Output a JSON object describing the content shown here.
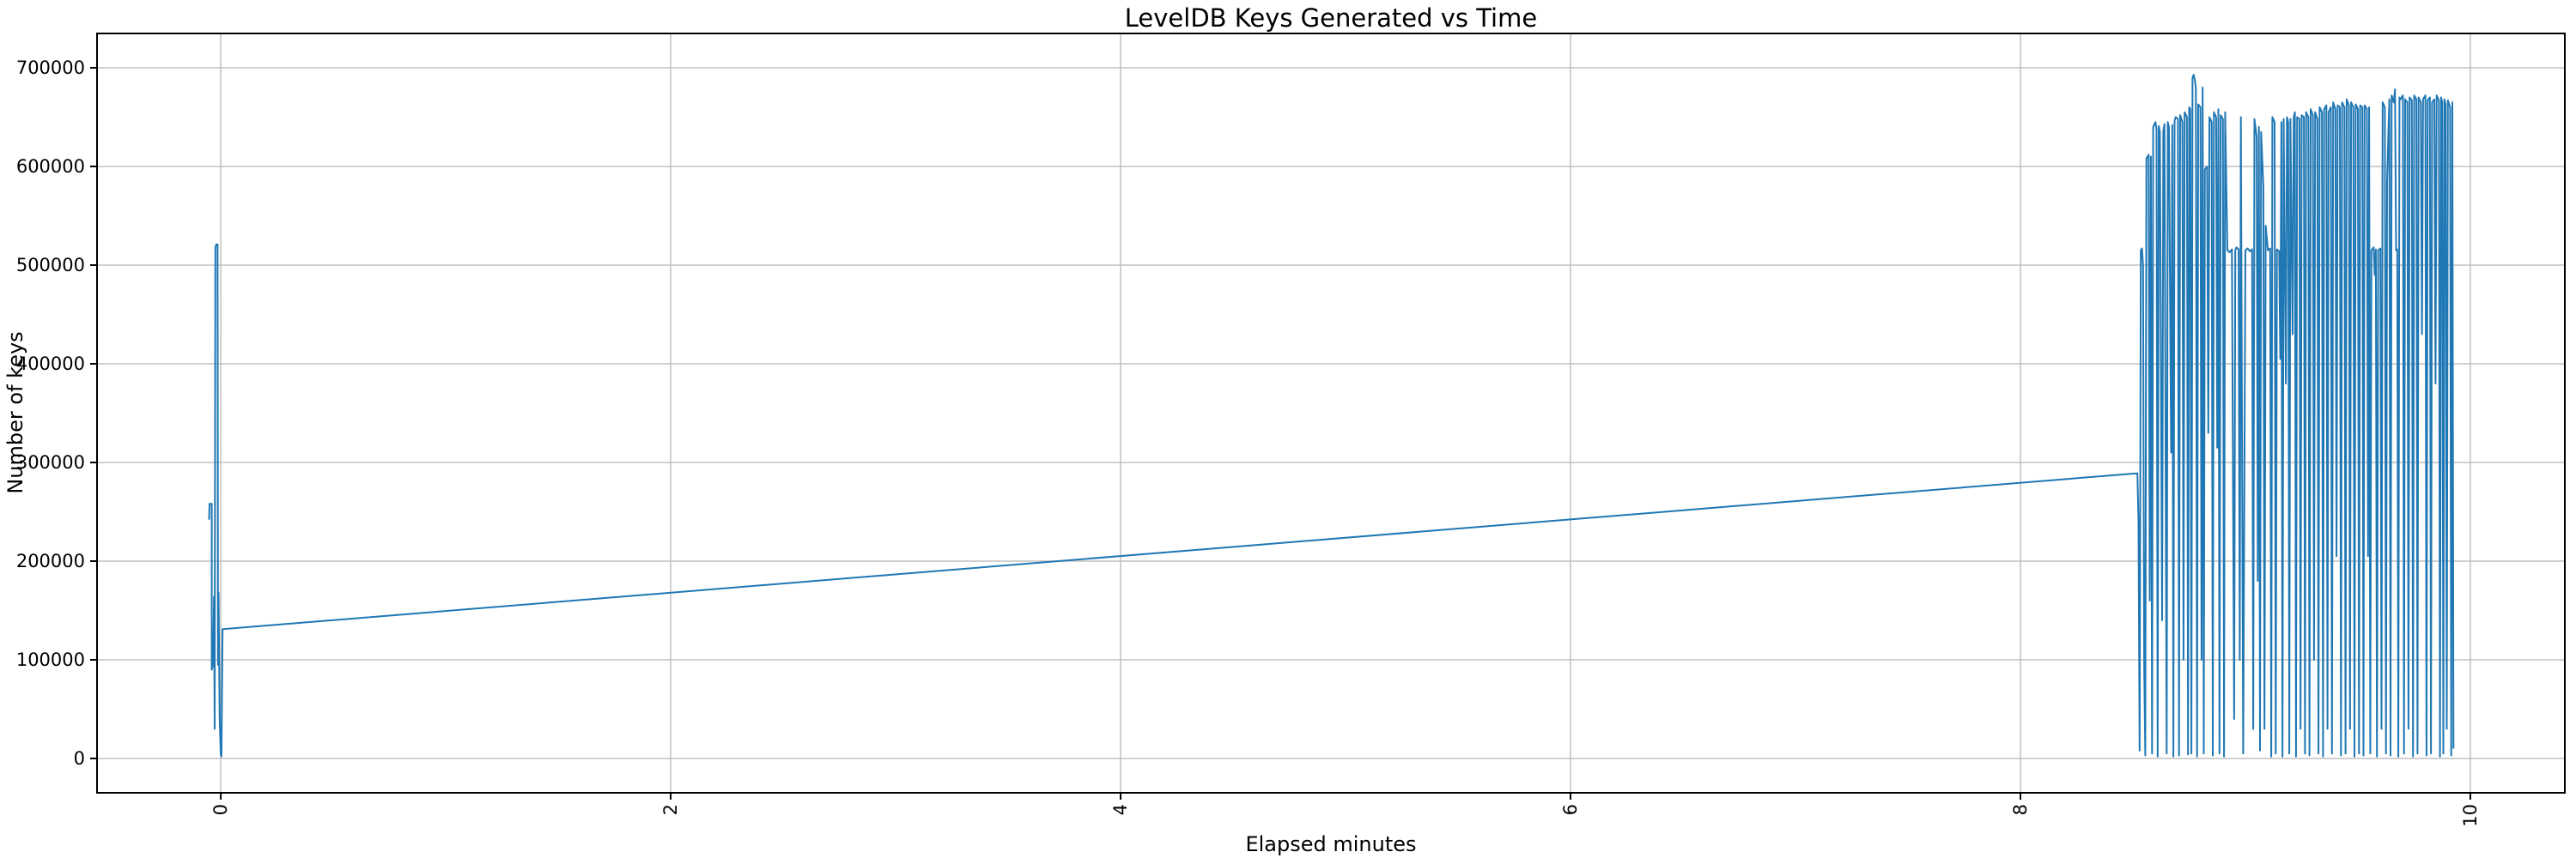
{
  "chart_data": {
    "type": "line",
    "title": "LevelDB Keys Generated vs Time",
    "xlabel": "Elapsed minutes",
    "ylabel": "Number of keys",
    "xlim": [
      -0.55,
      10.42
    ],
    "ylim": [
      -34800,
      734800
    ],
    "xticks": [
      0,
      2,
      4,
      6,
      8,
      10
    ],
    "yticks": [
      0,
      100000,
      200000,
      300000,
      400000,
      500000,
      600000,
      700000
    ],
    "grid": true,
    "legend": "none",
    "line_color": "#1f77b4",
    "grid_color": "#c0c0c0",
    "spine_color": "#000000",
    "background_color": "#ffffff",
    "series": [
      {
        "name": "keys-generated",
        "points": [
          [
            -0.052,
            242000
          ],
          [
            -0.05,
            258000
          ],
          [
            -0.04,
            258000
          ],
          [
            -0.04,
            90000
          ],
          [
            -0.034,
            96000
          ],
          [
            -0.03,
            164000
          ],
          [
            -0.027,
            30000
          ],
          [
            -0.024,
            518000
          ],
          [
            -0.02,
            521000
          ],
          [
            -0.014,
            521000
          ],
          [
            -0.012,
            95000
          ],
          [
            -0.01,
            168000
          ],
          [
            -0.005,
            42000
          ],
          [
            0.0,
            4000
          ],
          [
            0.003,
            2000
          ],
          [
            0.008,
            131000
          ],
          [
            8.52,
            289000
          ],
          [
            8.525,
            240000
          ],
          [
            8.53,
            8000
          ],
          [
            8.535,
            515000
          ],
          [
            8.54,
            517000
          ],
          [
            8.545,
            500000
          ],
          [
            8.55,
            95000
          ],
          [
            8.555,
            3000
          ],
          [
            8.56,
            608000
          ],
          [
            8.57,
            612000
          ],
          [
            8.575,
            160000
          ],
          [
            8.58,
            610000
          ],
          [
            8.585,
            5000
          ],
          [
            8.59,
            640000
          ],
          [
            8.6,
            645000
          ],
          [
            8.605,
            638000
          ],
          [
            8.61,
            2000
          ],
          [
            8.615,
            641000
          ],
          [
            8.62,
            635000
          ],
          [
            8.63,
            140000
          ],
          [
            8.635,
            636000
          ],
          [
            8.64,
            643000
          ],
          [
            8.65,
            5000
          ],
          [
            8.655,
            645000
          ],
          [
            8.66,
            640000
          ],
          [
            8.67,
            310000
          ],
          [
            8.675,
            642000
          ],
          [
            8.68,
            2000
          ],
          [
            8.685,
            646000
          ],
          [
            8.69,
            650000
          ],
          [
            8.7,
            648000
          ],
          [
            8.705,
            3000
          ],
          [
            8.71,
            652000
          ],
          [
            8.72,
            645000
          ],
          [
            8.725,
            100000
          ],
          [
            8.73,
            655000
          ],
          [
            8.74,
            650000
          ],
          [
            8.745,
            4000
          ],
          [
            8.75,
            660000
          ],
          [
            8.755,
            658000
          ],
          [
            8.76,
            5000
          ],
          [
            8.765,
            690000
          ],
          [
            8.77,
            693000
          ],
          [
            8.775,
            688000
          ],
          [
            8.78,
            680000
          ],
          [
            8.785,
            2000
          ],
          [
            8.79,
            663000
          ],
          [
            8.8,
            660000
          ],
          [
            8.805,
            100000
          ],
          [
            8.81,
            680000
          ],
          [
            8.815,
            5000
          ],
          [
            8.82,
            597000
          ],
          [
            8.83,
            600000
          ],
          [
            8.835,
            330000
          ],
          [
            8.84,
            650000
          ],
          [
            8.85,
            645000
          ],
          [
            8.855,
            3000
          ],
          [
            8.86,
            655000
          ],
          [
            8.87,
            650000
          ],
          [
            8.875,
            315000
          ],
          [
            8.88,
            658000
          ],
          [
            8.885,
            5000
          ],
          [
            8.89,
            652000
          ],
          [
            8.9,
            648000
          ],
          [
            8.905,
            2000
          ],
          [
            8.91,
            655000
          ],
          [
            8.92,
            515000
          ],
          [
            8.93,
            513000
          ],
          [
            8.94,
            516000
          ],
          [
            8.945,
            270000
          ],
          [
            8.95,
            40000
          ],
          [
            8.955,
            515000
          ],
          [
            8.96,
            518000
          ],
          [
            8.97,
            516000
          ],
          [
            8.975,
            100000
          ],
          [
            8.98,
            650000
          ],
          [
            8.99,
            5000
          ],
          [
            9.0,
            515000
          ],
          [
            9.01,
            517000
          ],
          [
            9.02,
            514000
          ],
          [
            9.03,
            516000
          ],
          [
            9.035,
            30000
          ],
          [
            9.04,
            648000
          ],
          [
            9.05,
            630000
          ],
          [
            9.055,
            180000
          ],
          [
            9.06,
            640000
          ],
          [
            9.065,
            8000
          ],
          [
            9.07,
            635000
          ],
          [
            9.08,
            580000
          ],
          [
            9.085,
            30000
          ],
          [
            9.09,
            540000
          ],
          [
            9.1,
            515000
          ],
          [
            9.11,
            517000
          ],
          [
            9.115,
            2000
          ],
          [
            9.12,
            650000
          ],
          [
            9.13,
            645000
          ],
          [
            9.135,
            5000
          ],
          [
            9.14,
            516000
          ],
          [
            9.15,
            514000
          ],
          [
            9.155,
            405000
          ],
          [
            9.16,
            645000
          ],
          [
            9.165,
            2000
          ],
          [
            9.17,
            648000
          ],
          [
            9.18,
            380000
          ],
          [
            9.185,
            650000
          ],
          [
            9.19,
            645000
          ],
          [
            9.195,
            5000
          ],
          [
            9.2,
            648000
          ],
          [
            9.21,
            430000
          ],
          [
            9.215,
            650000
          ],
          [
            9.22,
            655000
          ],
          [
            9.225,
            2000
          ],
          [
            9.23,
            650000
          ],
          [
            9.24,
            648000
          ],
          [
            9.245,
            30000
          ],
          [
            9.25,
            652000
          ],
          [
            9.26,
            650000
          ],
          [
            9.265,
            5000
          ],
          [
            9.27,
            655000
          ],
          [
            9.28,
            650000
          ],
          [
            9.285,
            3000
          ],
          [
            9.29,
            658000
          ],
          [
            9.3,
            652000
          ],
          [
            9.305,
            100000
          ],
          [
            9.31,
            655000
          ],
          [
            9.32,
            648000
          ],
          [
            9.325,
            5000
          ],
          [
            9.33,
            660000
          ],
          [
            9.34,
            655000
          ],
          [
            9.345,
            2000
          ],
          [
            9.35,
            658000
          ],
          [
            9.36,
            662000
          ],
          [
            9.365,
            30000
          ],
          [
            9.37,
            655000
          ],
          [
            9.38,
            660000
          ],
          [
            9.385,
            5000
          ],
          [
            9.39,
            665000
          ],
          [
            9.4,
            658000
          ],
          [
            9.405,
            205000
          ],
          [
            9.41,
            662000
          ],
          [
            9.42,
            660000
          ],
          [
            9.425,
            3000
          ],
          [
            9.43,
            665000
          ],
          [
            9.44,
            660000
          ],
          [
            9.445,
            5000
          ],
          [
            9.45,
            668000
          ],
          [
            9.46,
            662000
          ],
          [
            9.465,
            30000
          ],
          [
            9.47,
            665000
          ],
          [
            9.48,
            660000
          ],
          [
            9.485,
            2000
          ],
          [
            9.49,
            663000
          ],
          [
            9.5,
            658000
          ],
          [
            9.505,
            5000
          ],
          [
            9.51,
            662000
          ],
          [
            9.52,
            660000
          ],
          [
            9.525,
            3000
          ],
          [
            9.53,
            662000
          ],
          [
            9.54,
            658000
          ],
          [
            9.545,
            205000
          ],
          [
            9.55,
            660000
          ],
          [
            9.555,
            5000
          ],
          [
            9.56,
            515000
          ],
          [
            9.57,
            518000
          ],
          [
            9.575,
            490000
          ],
          [
            9.58,
            516000
          ],
          [
            9.585,
            2000
          ],
          [
            9.59,
            515000
          ],
          [
            9.6,
            517000
          ],
          [
            9.605,
            30000
          ],
          [
            9.61,
            665000
          ],
          [
            9.62,
            660000
          ],
          [
            9.625,
            5000
          ],
          [
            9.63,
            585000
          ],
          [
            9.64,
            668000
          ],
          [
            9.645,
            3000
          ],
          [
            9.65,
            672000
          ],
          [
            9.66,
            665000
          ],
          [
            9.665,
            678000
          ],
          [
            9.67,
            515000
          ],
          [
            9.675,
            516000
          ],
          [
            9.68,
            2000
          ],
          [
            9.685,
            670000
          ],
          [
            9.69,
            668000
          ],
          [
            9.7,
            672000
          ],
          [
            9.705,
            5000
          ],
          [
            9.71,
            668000
          ],
          [
            9.72,
            665000
          ],
          [
            9.725,
            30000
          ],
          [
            9.73,
            670000
          ],
          [
            9.74,
            667000
          ],
          [
            9.745,
            2000
          ],
          [
            9.75,
            672000
          ],
          [
            9.76,
            668000
          ],
          [
            9.765,
            5000
          ],
          [
            9.77,
            670000
          ],
          [
            9.78,
            665000
          ],
          [
            9.785,
            430000
          ],
          [
            9.79,
            668000
          ],
          [
            9.8,
            672000
          ],
          [
            9.805,
            3000
          ],
          [
            9.81,
            667000
          ],
          [
            9.82,
            670000
          ],
          [
            9.825,
            5000
          ],
          [
            9.83,
            665000
          ],
          [
            9.84,
            668000
          ],
          [
            9.845,
            380000
          ],
          [
            9.85,
            672000
          ],
          [
            9.86,
            667000
          ],
          [
            9.865,
            2000
          ],
          [
            9.87,
            670000
          ],
          [
            9.875,
            665000
          ],
          [
            9.88,
            5000
          ],
          [
            9.885,
            668000
          ],
          [
            9.89,
            663000
          ],
          [
            9.895,
            30000
          ],
          [
            9.9,
            667000
          ],
          [
            9.91,
            660000
          ],
          [
            9.915,
            3000
          ],
          [
            9.92,
            665000
          ],
          [
            9.925,
            10000
          ]
        ]
      }
    ]
  }
}
